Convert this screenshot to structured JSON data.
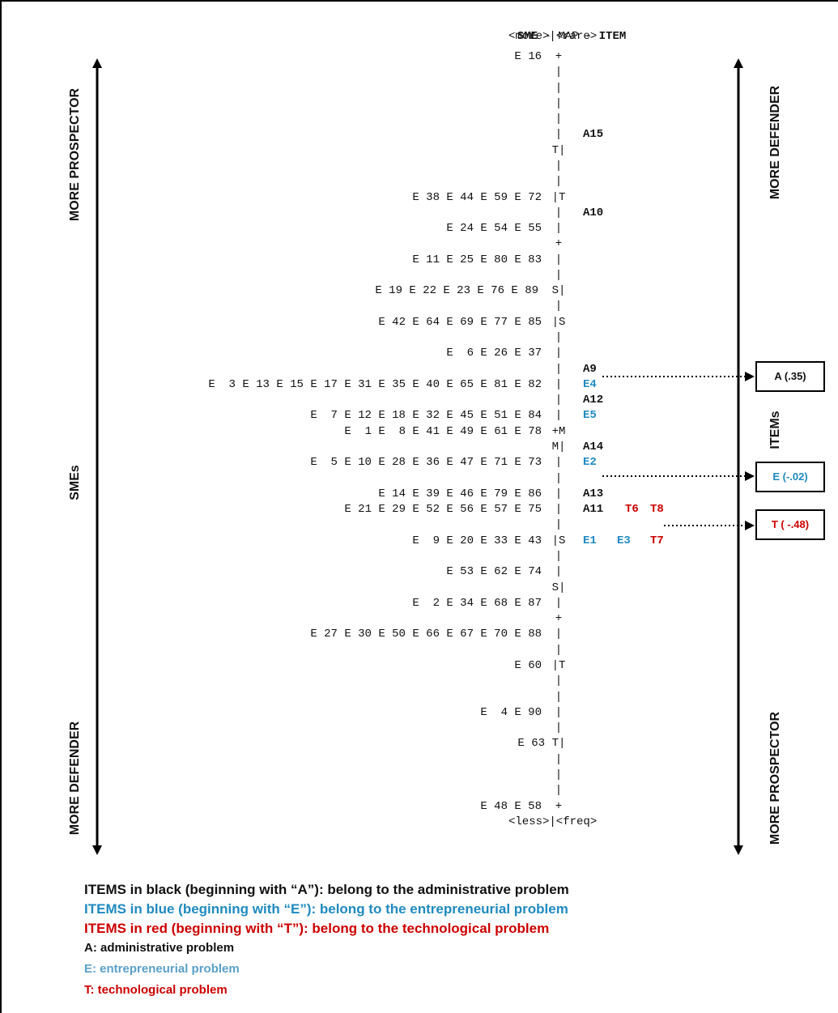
{
  "header": {
    "title_left": "SME",
    "title_mid": " - MAP - ",
    "title_right": "ITEM",
    "top_scale": "<more>|<rare>"
  },
  "footer_scale": "<less>|<freq>",
  "axis_labels": {
    "left_top": "MORE  PROSPECTOR",
    "left_mid": "SMEs",
    "left_bottom": "MORE DEFENDER",
    "right_top": "MORE DEFENDER",
    "right_mid": "ITEMs",
    "right_bottom": "MORE PROSPECTOR"
  },
  "sme_rows": [
    "E 16",
    "E 38 E 44 E 59 E 72",
    "E 24 E 54 E 55",
    "E 11 E 25 E 80 E 83",
    "E 19 E 22 E 23 E 76 E 89",
    "E 42 E 64 E 69 E 77 E 85",
    "E  6 E 26 E 37",
    "E  3 E 13 E 15 E 17 E 31 E 35 E 40 E 65 E 81 E 82",
    "E  7 E 12 E 18 E 32 E 45 E 51 E 84",
    "E  1 E  8 E 41 E 49 E 61 E 78",
    "E  5 E 10 E 28 E 36 E 47 E 71 E 73",
    "E 14 E 39 E 46 E 79 E 86",
    "E 21 E 29 E 52 E 56 E 57 E 75",
    "E  9 E 20 E 33 E 43",
    "E 53 E 62 E 74",
    "E  2 E 34 E 68 E 87",
    "E 27 E 30 E 50 E 66 E 67 E 70 E 88",
    "E 60",
    "E  4 E 90",
    "E 63",
    "E 48 E 58"
  ],
  "axis_marks": {
    "plus": "+",
    "bar": "|",
    "T_left": "T|",
    "T_right": "|T",
    "S_left": "S|",
    "S_right": "|S",
    "M_right": "+M",
    "M_left": "M|"
  },
  "items": {
    "A15": "A15",
    "A10": "A10",
    "A9": "A9",
    "E4": "E4",
    "A12": "A12",
    "E5": "E5",
    "A14": "A14",
    "E2": "E2",
    "A13": "A13",
    "A11": "A11",
    "T6": "T6",
    "T8": "T8",
    "E1": "E1",
    "E3": "E3",
    "T7": "T7"
  },
  "callouts": {
    "a": "A (.35)",
    "e": "E (-.02)",
    "t": "T ( -.48)"
  },
  "legend": {
    "line1": "ITEMS in black (beginning with “A”): belong to the administrative problem",
    "line2": "ITEMS in blue (beginning with “E”): belong to the entrepreneurial problem",
    "line3": "ITEMS in red (beginning with “T”): belong to the technological problem",
    "a_key": "A:",
    "a_text": " administrative problem",
    "e_key": "E:",
    "e_text": " entrepreneurial problem",
    "t_key": "T:",
    "t_text": " technological problem"
  },
  "colors": {
    "black": "#111111",
    "blue": "#1f8ac0",
    "red": "#cc0000",
    "light_blue": "#5aa0c8"
  }
}
